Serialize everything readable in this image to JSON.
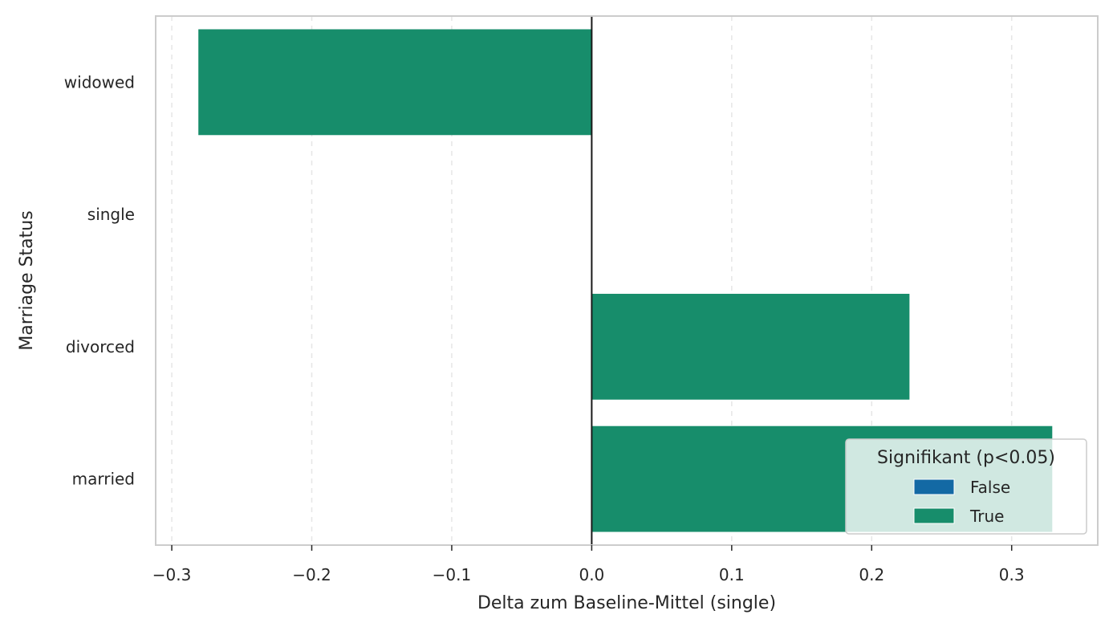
{
  "chart_data": {
    "type": "bar",
    "orientation": "horizontal",
    "categories": [
      "widowed",
      "single",
      "divorced",
      "married"
    ],
    "values": [
      -0.281,
      0.0,
      0.227,
      0.329
    ],
    "significant": [
      true,
      null,
      true,
      true
    ],
    "xlabel": "Delta zum Baseline-Mittel (single)",
    "ylabel": "Marriage Status",
    "xlim": [
      -0.3115,
      0.3615
    ],
    "xticks": [
      -0.3,
      -0.2,
      -0.1,
      0.0,
      0.1,
      0.2,
      0.3
    ],
    "xtick_labels": [
      "−0.3",
      "−0.2",
      "−0.1",
      "0.0",
      "0.1",
      "0.2",
      "0.3"
    ],
    "grid": "x-dashed",
    "reference_line": 0.0,
    "legend": {
      "title": "Signifikant (p<0.05)",
      "placement": "lower-right",
      "entries": [
        {
          "label": "False",
          "color": "#1369a4"
        },
        {
          "label": "True",
          "color": "#178d6b"
        }
      ]
    }
  }
}
